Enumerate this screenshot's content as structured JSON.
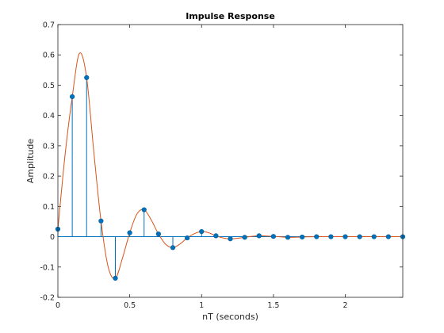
{
  "chart_data": {
    "type": "stem",
    "title": "Impulse Response",
    "xlabel": "nT (seconds)",
    "ylabel": "Amplitude",
    "xlim": [
      0,
      2.4
    ],
    "ylim": [
      -0.2,
      0.7
    ],
    "x_ticks": [
      0,
      0.5,
      1,
      1.5,
      2
    ],
    "x_tick_labels": [
      "0",
      "0.5",
      "1",
      "1.5",
      "2"
    ],
    "y_ticks": [
      -0.2,
      -0.1,
      0,
      0.1,
      0.2,
      0.3,
      0.4,
      0.5,
      0.6,
      0.7
    ],
    "y_tick_labels": [
      "-0.2",
      "-0.1",
      "0",
      "0.1",
      "0.2",
      "0.3",
      "0.4",
      "0.5",
      "0.6",
      "0.7"
    ],
    "grid": false,
    "stem_color": "#0072BD",
    "marker_color": "#0072BD",
    "curve_color": "#D95319",
    "stems": {
      "x": [
        0,
        0.1,
        0.2,
        0.3,
        0.4,
        0.5,
        0.6,
        0.7,
        0.8,
        0.9,
        1.0,
        1.1,
        1.2,
        1.3,
        1.4,
        1.5,
        1.6,
        1.7,
        1.8,
        1.9,
        2.0,
        2.1,
        2.2,
        2.3,
        2.4
      ],
      "y": [
        0.025,
        0.462,
        0.525,
        0.052,
        -0.137,
        0.013,
        0.089,
        0.009,
        -0.036,
        -0.004,
        0.017,
        0.003,
        -0.007,
        -0.002,
        0.003,
        0.001,
        -0.002,
        -0.001,
        0.0,
        0.0,
        0.0,
        0.0,
        0.0,
        0.0,
        0.0
      ]
    },
    "curve": {
      "x": [
        0,
        0.05,
        0.1,
        0.15,
        0.2,
        0.25,
        0.3,
        0.35,
        0.4,
        0.45,
        0.5,
        0.55,
        0.6,
        0.65,
        0.7,
        0.75,
        0.8,
        0.85,
        0.9,
        0.95,
        1.0,
        1.05,
        1.1,
        1.15,
        1.2,
        1.25,
        1.3,
        1.35,
        1.4,
        1.5,
        1.6,
        1.7,
        1.8,
        1.9,
        2.0,
        2.1,
        2.2,
        2.3,
        2.4
      ],
      "y": [
        0.025,
        0.27,
        0.462,
        0.605,
        0.525,
        0.28,
        0.052,
        -0.1,
        -0.137,
        -0.07,
        0.013,
        0.075,
        0.089,
        0.055,
        0.009,
        -0.025,
        -0.036,
        -0.024,
        -0.004,
        0.01,
        0.017,
        0.013,
        0.003,
        -0.004,
        -0.007,
        -0.005,
        -0.002,
        0.001,
        0.003,
        0.001,
        -0.002,
        -0.001,
        0.0,
        0.0,
        0.0,
        0.0,
        0.0,
        0.0,
        0.0
      ]
    }
  }
}
